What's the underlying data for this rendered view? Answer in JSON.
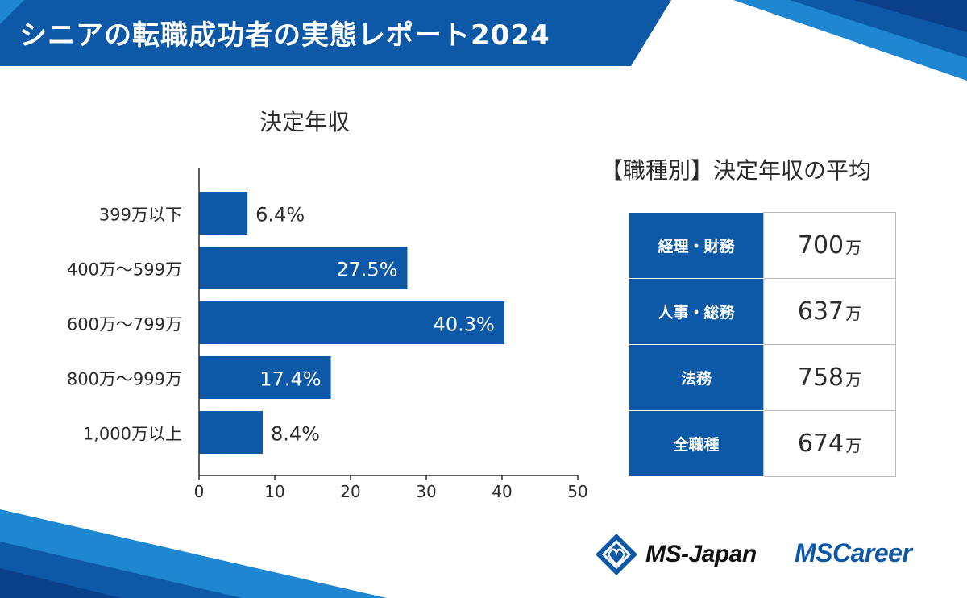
{
  "header": {
    "title": "シニアの転職成功者の実態レポート2024"
  },
  "colors": {
    "brand": "#0d58a7",
    "dark": "#0a3f8a",
    "light": "#1f86d1"
  },
  "chart_data": {
    "type": "bar",
    "orientation": "horizontal",
    "title": "決定年収",
    "categories": [
      "399万以下",
      "400万～599万",
      "600万～799万",
      "800万～999万",
      "1,000万以上"
    ],
    "values": [
      6.4,
      27.5,
      40.3,
      17.4,
      8.4
    ],
    "value_labels": [
      "6.4%",
      "27.5%",
      "40.3%",
      "17.4%",
      "8.4%"
    ],
    "xlim": [
      0,
      50
    ],
    "xticks": [
      0,
      10,
      20,
      30,
      40,
      50
    ],
    "xlabel": "",
    "ylabel": "",
    "grid": false
  },
  "average_table": {
    "title": "【職種別】決定年収の平均",
    "unit": "万",
    "rows": [
      {
        "label": "経理・財務",
        "value": "700"
      },
      {
        "label": "人事・総務",
        "value": "637"
      },
      {
        "label": "法務",
        "value": "758"
      },
      {
        "label": "全職種",
        "value": "674"
      }
    ]
  },
  "logos": {
    "ms_japan": "MS-Japan",
    "ms_career": "MSCareer"
  }
}
